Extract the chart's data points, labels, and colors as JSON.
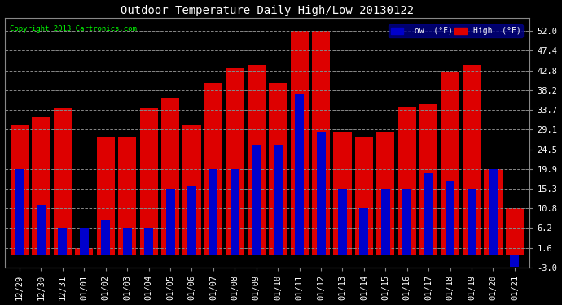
{
  "title": "Outdoor Temperature Daily High/Low 20130122",
  "copyright": "Copyright 2013 Cartronics.com",
  "dates": [
    "12/29",
    "12/30",
    "12/31",
    "01/01",
    "01/02",
    "01/03",
    "01/04",
    "01/05",
    "01/06",
    "01/07",
    "01/08",
    "01/09",
    "01/10",
    "01/11",
    "01/12",
    "01/13",
    "01/14",
    "01/15",
    "01/16",
    "01/17",
    "01/18",
    "01/19",
    "01/20",
    "01/21"
  ],
  "high": [
    30.0,
    32.0,
    34.0,
    1.6,
    27.5,
    27.5,
    34.0,
    36.5,
    30.0,
    40.0,
    43.5,
    44.0,
    40.0,
    52.0,
    52.0,
    28.5,
    27.5,
    28.5,
    34.5,
    35.0,
    42.5,
    44.0,
    19.9,
    10.8
  ],
  "low": [
    19.9,
    11.5,
    6.2,
    6.2,
    8.0,
    6.2,
    6.2,
    15.3,
    16.0,
    19.9,
    19.9,
    25.5,
    25.5,
    37.4,
    28.5,
    15.3,
    10.8,
    15.3,
    15.3,
    19.0,
    17.0,
    15.3,
    19.9,
    -2.8
  ],
  "high_color": "#dd0000",
  "low_color": "#0000cc",
  "background_color": "#000000",
  "plot_bg_color": "#000000",
  "grid_color": "#888888",
  "ylim": [
    -3.0,
    55.0
  ],
  "yticks": [
    -3.0,
    1.6,
    6.2,
    10.8,
    15.3,
    19.9,
    24.5,
    29.1,
    33.7,
    38.2,
    42.8,
    47.4,
    52.0
  ],
  "ytick_labels": [
    "-3.0",
    "1.6",
    "6.2",
    "10.8",
    "15.3",
    "19.9",
    "24.5",
    "29.1",
    "33.7",
    "38.2",
    "42.8",
    "47.4",
    "52.0"
  ],
  "bar_width": 0.42,
  "legend_low_label": "Low  (°F)",
  "legend_high_label": "High  (°F)",
  "title_color": "#ffffff",
  "copyright_color": "#00ff00",
  "tick_color": "#ffffff",
  "spine_color": "#888888"
}
